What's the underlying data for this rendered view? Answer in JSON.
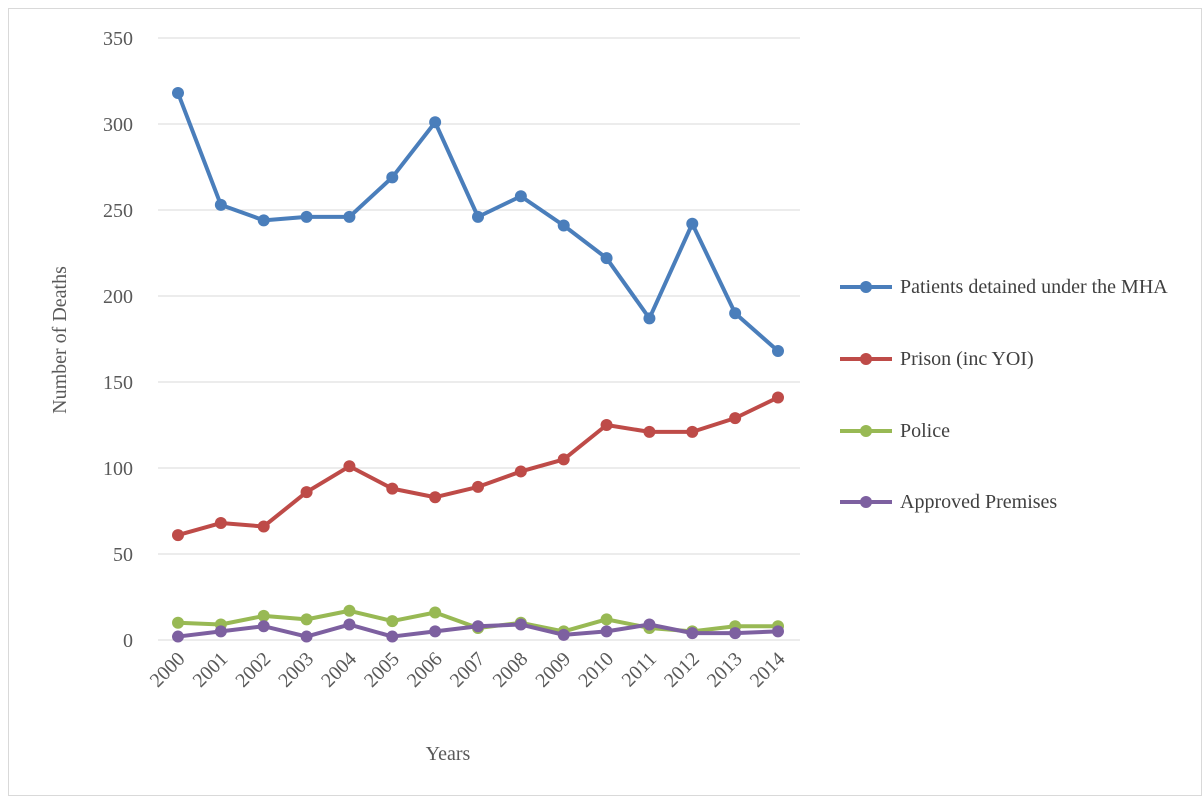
{
  "chart_data": {
    "type": "line",
    "xlabel": "Years",
    "ylabel": "Number of Deaths",
    "categories": [
      "2000",
      "2001",
      "2002",
      "2003",
      "2004",
      "2005",
      "2006",
      "2007",
      "2008",
      "2009",
      "2010",
      "2011",
      "2012",
      "2013",
      "2014"
    ],
    "series": [
      {
        "name": "Patients detained under the MHA",
        "color": "#4a7ebb",
        "values": [
          318,
          253,
          244,
          246,
          246,
          269,
          301,
          246,
          258,
          241,
          222,
          187,
          242,
          190,
          168
        ]
      },
      {
        "name": "Prison (inc YOI)",
        "color": "#be4b48",
        "values": [
          61,
          68,
          66,
          86,
          101,
          88,
          83,
          89,
          98,
          105,
          125,
          121,
          121,
          129,
          141
        ]
      },
      {
        "name": "Police",
        "color": "#98b954",
        "values": [
          10,
          9,
          14,
          12,
          17,
          11,
          16,
          7,
          10,
          5,
          12,
          7,
          5,
          8,
          8
        ]
      },
      {
        "name": "Approved Premises",
        "color": "#7d60a0",
        "values": [
          2,
          5,
          8,
          2,
          9,
          2,
          5,
          8,
          9,
          3,
          5,
          9,
          4,
          4,
          5
        ]
      }
    ],
    "ylim": [
      0,
      350
    ],
    "yticks": [
      0,
      50,
      100,
      150,
      200,
      250,
      300,
      350
    ],
    "grid": true,
    "legend": "right"
  }
}
